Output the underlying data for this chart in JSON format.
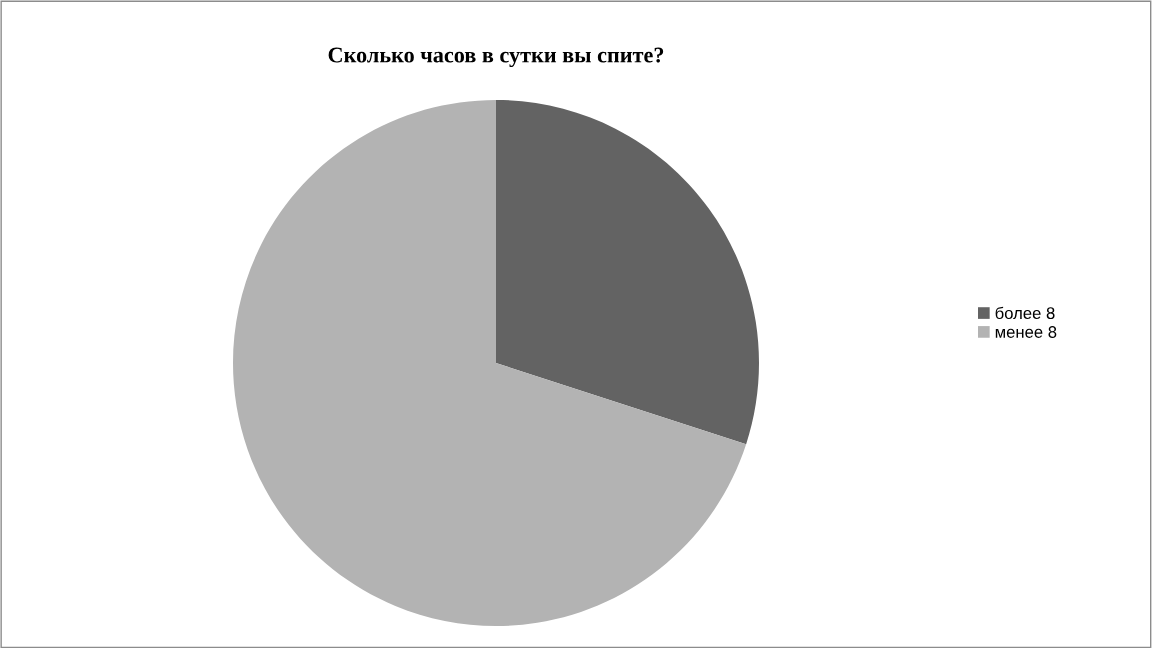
{
  "chart_data": {
    "type": "pie",
    "title": "Сколько часов в сутки вы спите?",
    "categories": [
      "более 8",
      "менее 8"
    ],
    "values": [
      30,
      70
    ],
    "colors": [
      "#636363",
      "#b3b3b3"
    ],
    "legend": "right"
  }
}
